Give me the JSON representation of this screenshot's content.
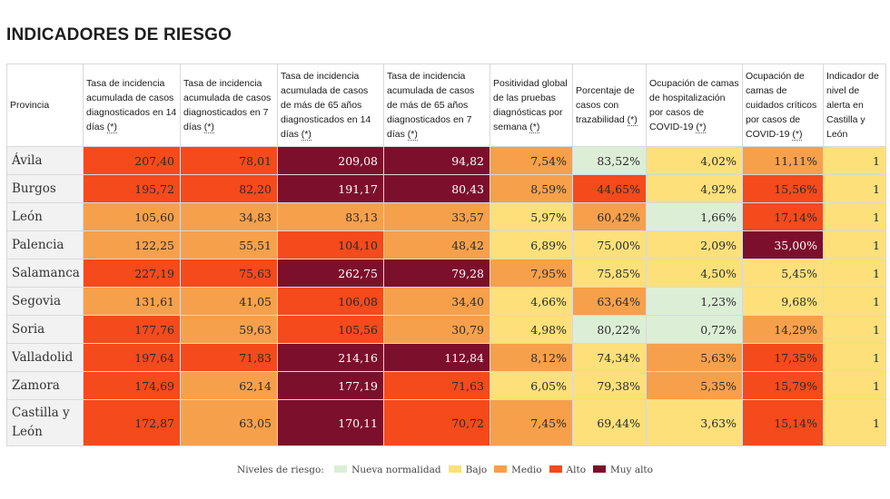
{
  "title": "INDICADORES DE RIESGO",
  "headers": [
    {
      "text": "Provincia",
      "mark": ""
    },
    {
      "text": "Tasa de incidencia acumulada de casos diagnosticados en 14 días ",
      "mark": "(*)"
    },
    {
      "text": "Tasa de incidencia acumulada de casos diagnosticados en 7 días ",
      "mark": "(*)"
    },
    {
      "text": "Tasa de incidencia acumulada de casos de más de 65 años diagnosticados en 14 días ",
      "mark": "(*)"
    },
    {
      "text": "Tasa de incidencia acumulada de casos de más de 65 años diagnosticados en 7 días ",
      "mark": "(*)"
    },
    {
      "text": "Positividad global de las pruebas diagnósticas por semana ",
      "mark": "(*)"
    },
    {
      "text": "Porcentaje de casos con trazabilidad ",
      "mark": "(*)"
    },
    {
      "text": "Ocupación de camas de hospitalización por casos de COVID-19 ",
      "mark": "(*)"
    },
    {
      "text": "Ocupación de camas de cuidados críticos por casos de COVID-19 ",
      "mark": "(*)"
    },
    {
      "text": "Indicador de nivel de alerta en Castilla y León",
      "mark": ""
    }
  ],
  "rows": [
    {
      "provincia": "Ávila",
      "values": [
        "207,40",
        "78,01",
        "209,08",
        "94,82",
        "7,54%",
        "83,52%",
        "4,02%",
        "11,11%",
        "1"
      ],
      "levels": [
        "alto",
        "alto",
        "muyalto",
        "muyalto",
        "medio",
        "nueva",
        "bajo",
        "medio",
        "bajo"
      ]
    },
    {
      "provincia": "Burgos",
      "values": [
        "195,72",
        "82,20",
        "191,17",
        "80,43",
        "8,59%",
        "44,65%",
        "4,92%",
        "15,56%",
        "1"
      ],
      "levels": [
        "alto",
        "alto",
        "muyalto",
        "muyalto",
        "medio",
        "alto",
        "bajo",
        "alto",
        "bajo"
      ]
    },
    {
      "provincia": "León",
      "values": [
        "105,60",
        "34,83",
        "83,13",
        "33,57",
        "5,97%",
        "60,42%",
        "1,66%",
        "17,14%",
        "1"
      ],
      "levels": [
        "medio",
        "medio",
        "medio",
        "medio",
        "bajo",
        "medio",
        "nueva",
        "alto",
        "bajo"
      ]
    },
    {
      "provincia": "Palencia",
      "values": [
        "122,25",
        "55,51",
        "104,10",
        "48,42",
        "6,89%",
        "75,00%",
        "2,09%",
        "35,00%",
        "1"
      ],
      "levels": [
        "medio",
        "medio",
        "alto",
        "medio",
        "bajo",
        "bajo",
        "bajo",
        "muyalto",
        "bajo"
      ]
    },
    {
      "provincia": "Salamanca",
      "values": [
        "227,19",
        "75,63",
        "262,75",
        "79,28",
        "7,95%",
        "75,85%",
        "4,50%",
        "5,45%",
        "1"
      ],
      "levels": [
        "alto",
        "alto",
        "muyalto",
        "muyalto",
        "medio",
        "bajo",
        "bajo",
        "bajo",
        "bajo"
      ]
    },
    {
      "provincia": "Segovia",
      "values": [
        "131,61",
        "41,05",
        "106,08",
        "34,40",
        "4,66%",
        "63,64%",
        "1,23%",
        "9,68%",
        "1"
      ],
      "levels": [
        "medio",
        "medio",
        "alto",
        "medio",
        "bajo",
        "medio",
        "nueva",
        "bajo",
        "bajo"
      ]
    },
    {
      "provincia": "Soria",
      "values": [
        "177,76",
        "59,63",
        "105,56",
        "30,79",
        "4,98%",
        "80,22%",
        "0,72%",
        "14,29%",
        "1"
      ],
      "levels": [
        "alto",
        "medio",
        "alto",
        "medio",
        "bajo",
        "nueva",
        "nueva",
        "medio",
        "bajo"
      ]
    },
    {
      "provincia": "Valladolid",
      "values": [
        "197,64",
        "71,83",
        "214,16",
        "112,84",
        "8,12%",
        "74,34%",
        "5,63%",
        "17,35%",
        "1"
      ],
      "levels": [
        "alto",
        "alto",
        "muyalto",
        "muyalto",
        "medio",
        "bajo",
        "medio",
        "alto",
        "bajo"
      ]
    },
    {
      "provincia": "Zamora",
      "values": [
        "174,69",
        "62,14",
        "177,19",
        "71,63",
        "6,05%",
        "79,38%",
        "5,35%",
        "15,79%",
        "1"
      ],
      "levels": [
        "alto",
        "medio",
        "muyalto",
        "alto",
        "bajo",
        "bajo",
        "medio",
        "alto",
        "bajo"
      ]
    },
    {
      "provincia": "Castilla y León",
      "values": [
        "172,87",
        "63,05",
        "170,11",
        "70,72",
        "7,45%",
        "69,44%",
        "3,63%",
        "15,14%",
        "1"
      ],
      "levels": [
        "alto",
        "medio",
        "muyalto",
        "alto",
        "medio",
        "bajo",
        "bajo",
        "alto",
        "bajo"
      ]
    }
  ],
  "legend": {
    "label": "Niveles de riesgo:",
    "items": [
      {
        "level": "nueva",
        "label": "Nueva normalidad",
        "color": "#dcefd6"
      },
      {
        "level": "bajo",
        "label": "Bajo",
        "color": "#fde07a"
      },
      {
        "level": "medio",
        "label": "Medio",
        "color": "#f7a04b"
      },
      {
        "level": "alto",
        "label": "Alto",
        "color": "#f44a1c"
      },
      {
        "level": "muyalto",
        "label": "Muy alto",
        "color": "#7c0f2c"
      }
    ]
  }
}
